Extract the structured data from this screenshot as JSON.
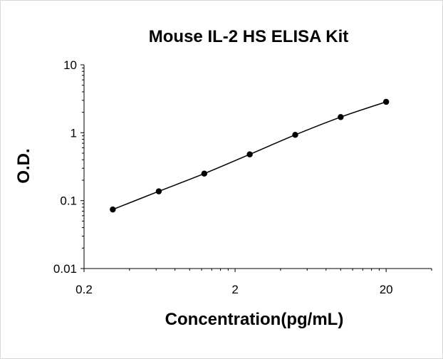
{
  "chart_data": {
    "type": "scatter",
    "title": "Mouse IL-2 HS ELISA Kit",
    "xlabel": "Concentration(pg/mL)",
    "ylabel": "O.D.",
    "xscale": "log",
    "yscale": "log",
    "xlim": [
      0.2,
      40
    ],
    "ylim": [
      0.01,
      10
    ],
    "xticks": [
      {
        "value": 0.2,
        "label": "0.2"
      },
      {
        "value": 2,
        "label": "2"
      },
      {
        "value": 20,
        "label": "20"
      }
    ],
    "yticks": [
      {
        "value": 0.01,
        "label": "0.01"
      },
      {
        "value": 0.1,
        "label": "0.1"
      },
      {
        "value": 1,
        "label": "1"
      },
      {
        "value": 10,
        "label": "10"
      }
    ],
    "grid": false,
    "legend": "none",
    "series": [
      {
        "x": [
          0.31,
          0.625,
          1.25,
          2.5,
          5,
          10,
          20
        ],
        "y": [
          0.074,
          0.137,
          0.25,
          0.48,
          0.93,
          1.7,
          2.85
        ]
      }
    ],
    "fit_line": true,
    "marker_color": "#000000",
    "line_color": "#000000"
  }
}
